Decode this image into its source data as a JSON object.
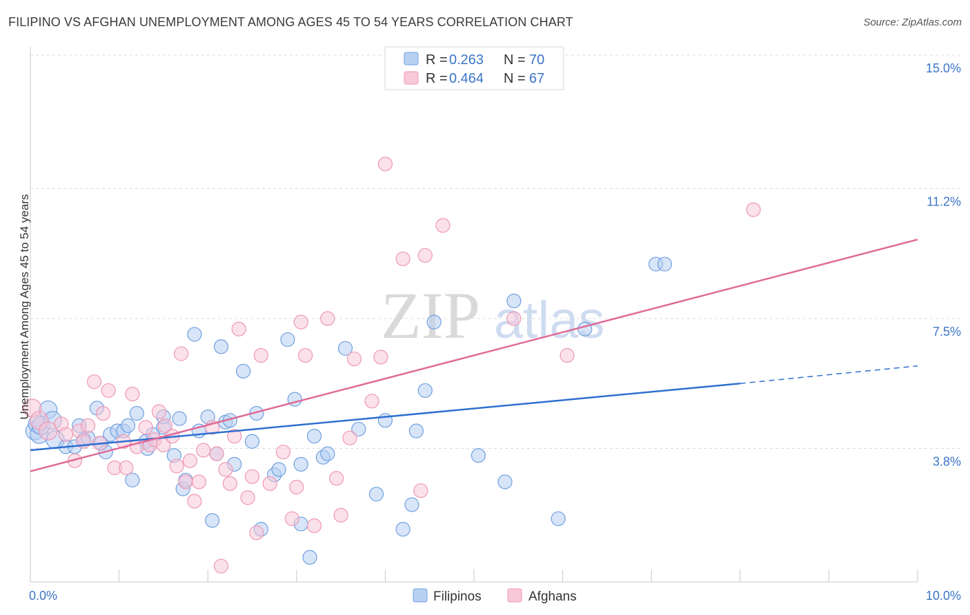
{
  "title": "FILIPINO VS AFGHAN UNEMPLOYMENT AMONG AGES 45 TO 54 YEARS CORRELATION CHART",
  "source": "Source: ZipAtlas.com",
  "watermark": {
    "zip": "ZIP",
    "atlas": "atlas"
  },
  "chart_data": {
    "type": "scatter",
    "title": "FILIPINO VS AFGHAN UNEMPLOYMENT AMONG AGES 45 TO 54 YEARS CORRELATION CHART",
    "xlabel": "",
    "ylabel": "Unemployment Among Ages 45 to 54 years",
    "xlim": [
      0,
      10
    ],
    "ylim": [
      0,
      15
    ],
    "x_tick_labels": {
      "left": "0.0%",
      "right": "10.0%"
    },
    "y_ticks": [
      {
        "value": 3.8,
        "label": "3.8%"
      },
      {
        "value": 7.5,
        "label": "7.5%"
      },
      {
        "value": 11.2,
        "label": "11.2%"
      },
      {
        "value": 15.0,
        "label": "15.0%"
      }
    ],
    "grid": "horizontal-dashed",
    "legend": {
      "position": "top-center",
      "entries": [
        {
          "r_label": "R =",
          "r_value": "0.263",
          "n_label": "N =",
          "n_value": "70"
        },
        {
          "r_label": "R =",
          "r_value": "0.464",
          "n_label": "N =",
          "n_value": "67"
        }
      ]
    },
    "series": [
      {
        "name": "Filipinos",
        "color": "#6e9fe0",
        "fill": "#b8d0f2",
        "line_color": "#2f6fd0",
        "trend": {
          "x0": 0,
          "y0": 3.75,
          "x1": 8.0,
          "y1": 5.65,
          "dash_to_x": 10,
          "dash_to_y": 6.15
        },
        "points": [
          [
            0.05,
            4.3
          ],
          [
            0.08,
            4.5
          ],
          [
            0.1,
            4.2
          ],
          [
            0.12,
            4.45
          ],
          [
            0.2,
            4.9
          ],
          [
            0.25,
            4.6
          ],
          [
            0.28,
            4.05
          ],
          [
            0.4,
            3.85
          ],
          [
            0.5,
            3.85
          ],
          [
            0.55,
            4.45
          ],
          [
            0.6,
            4.05
          ],
          [
            0.65,
            4.1
          ],
          [
            0.75,
            4.95
          ],
          [
            0.8,
            3.95
          ],
          [
            0.85,
            3.7
          ],
          [
            0.9,
            4.2
          ],
          [
            0.98,
            4.3
          ],
          [
            1.05,
            4.3
          ],
          [
            1.1,
            4.45
          ],
          [
            1.15,
            2.9
          ],
          [
            1.2,
            4.8
          ],
          [
            1.3,
            4.0
          ],
          [
            1.32,
            3.8
          ],
          [
            1.38,
            4.2
          ],
          [
            1.5,
            4.4
          ],
          [
            1.5,
            4.7
          ],
          [
            1.62,
            3.6
          ],
          [
            1.68,
            4.65
          ],
          [
            1.72,
            2.65
          ],
          [
            1.75,
            2.9
          ],
          [
            1.85,
            7.05
          ],
          [
            1.9,
            4.3
          ],
          [
            2.0,
            4.7
          ],
          [
            2.05,
            1.75
          ],
          [
            2.1,
            3.65
          ],
          [
            2.15,
            6.7
          ],
          [
            2.2,
            4.55
          ],
          [
            2.25,
            4.6
          ],
          [
            2.3,
            3.35
          ],
          [
            2.4,
            6.0
          ],
          [
            2.5,
            4.0
          ],
          [
            2.55,
            4.8
          ],
          [
            2.6,
            1.5
          ],
          [
            2.75,
            3.05
          ],
          [
            2.8,
            3.2
          ],
          [
            2.9,
            6.9
          ],
          [
            2.98,
            5.2
          ],
          [
            3.05,
            1.65
          ],
          [
            3.05,
            3.35
          ],
          [
            3.15,
            0.7
          ],
          [
            3.2,
            4.15
          ],
          [
            3.3,
            3.55
          ],
          [
            3.35,
            3.65
          ],
          [
            3.55,
            6.65
          ],
          [
            3.7,
            4.35
          ],
          [
            3.9,
            2.5
          ],
          [
            4.0,
            4.6
          ],
          [
            4.2,
            1.5
          ],
          [
            4.3,
            2.2
          ],
          [
            4.35,
            4.3
          ],
          [
            4.45,
            5.45
          ],
          [
            4.55,
            7.4
          ],
          [
            5.05,
            3.6
          ],
          [
            5.35,
            2.85
          ],
          [
            5.45,
            8.0
          ],
          [
            5.95,
            1.8
          ],
          [
            6.25,
            7.2
          ],
          [
            7.05,
            9.05
          ],
          [
            7.15,
            9.05
          ]
        ]
      },
      {
        "name": "Afghans",
        "color": "#ee97b4",
        "fill": "#f8c8d8",
        "line_color": "#e06a96",
        "trend": {
          "x0": 0,
          "y0": 3.15,
          "x1": 10.0,
          "y1": 9.75
        },
        "points": [
          [
            0.02,
            4.95
          ],
          [
            0.1,
            4.6
          ],
          [
            0.2,
            4.3
          ],
          [
            0.35,
            4.5
          ],
          [
            0.4,
            4.2
          ],
          [
            0.5,
            3.45
          ],
          [
            0.55,
            4.3
          ],
          [
            0.6,
            4.0
          ],
          [
            0.65,
            4.45
          ],
          [
            0.72,
            5.7
          ],
          [
            0.78,
            3.95
          ],
          [
            0.82,
            4.8
          ],
          [
            0.88,
            5.45
          ],
          [
            0.95,
            3.25
          ],
          [
            1.05,
            4.0
          ],
          [
            1.08,
            3.25
          ],
          [
            1.15,
            5.35
          ],
          [
            1.2,
            3.85
          ],
          [
            1.3,
            4.4
          ],
          [
            1.35,
            3.9
          ],
          [
            1.4,
            4.05
          ],
          [
            1.45,
            4.85
          ],
          [
            1.5,
            3.9
          ],
          [
            1.52,
            4.45
          ],
          [
            1.6,
            4.15
          ],
          [
            1.65,
            3.3
          ],
          [
            1.7,
            6.5
          ],
          [
            1.75,
            2.85
          ],
          [
            1.8,
            3.45
          ],
          [
            1.85,
            2.3
          ],
          [
            1.9,
            2.85
          ],
          [
            1.95,
            3.75
          ],
          [
            2.05,
            4.4
          ],
          [
            2.1,
            3.65
          ],
          [
            2.15,
            0.45
          ],
          [
            2.2,
            3.2
          ],
          [
            2.25,
            2.8
          ],
          [
            2.3,
            4.15
          ],
          [
            2.35,
            7.2
          ],
          [
            2.45,
            2.4
          ],
          [
            2.5,
            3.0
          ],
          [
            2.55,
            1.4
          ],
          [
            2.6,
            6.45
          ],
          [
            2.7,
            2.8
          ],
          [
            2.85,
            3.7
          ],
          [
            2.95,
            1.8
          ],
          [
            3.0,
            2.7
          ],
          [
            3.05,
            7.4
          ],
          [
            3.1,
            6.45
          ],
          [
            3.2,
            1.6
          ],
          [
            3.35,
            7.5
          ],
          [
            3.45,
            2.95
          ],
          [
            3.5,
            1.9
          ],
          [
            3.6,
            4.1
          ],
          [
            3.65,
            6.35
          ],
          [
            3.85,
            5.15
          ],
          [
            3.95,
            6.4
          ],
          [
            4.0,
            11.9
          ],
          [
            4.2,
            9.2
          ],
          [
            4.4,
            2.6
          ],
          [
            4.45,
            9.3
          ],
          [
            4.65,
            10.15
          ],
          [
            5.45,
            7.5
          ],
          [
            6.05,
            6.45
          ],
          [
            8.15,
            10.6
          ]
        ]
      }
    ]
  }
}
